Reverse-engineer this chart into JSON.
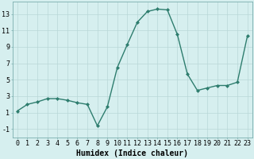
{
  "x": [
    0,
    1,
    2,
    3,
    4,
    5,
    6,
    7,
    8,
    9,
    10,
    11,
    12,
    13,
    14,
    15,
    16,
    17,
    18,
    19,
    20,
    21,
    22,
    23
  ],
  "y": [
    1.2,
    2.0,
    2.3,
    2.7,
    2.7,
    2.5,
    2.2,
    2.0,
    -0.6,
    1.7,
    6.5,
    9.3,
    12.0,
    13.3,
    13.6,
    13.5,
    10.5,
    5.7,
    3.7,
    4.0,
    4.3,
    4.3,
    4.7,
    10.3
  ],
  "line_color": "#2e7d6e",
  "marker": "D",
  "marker_size": 2,
  "bg_color": "#d6efef",
  "grid_color": "#b8d8d8",
  "xlabel": "Humidex (Indice chaleur)",
  "xlim": [
    -0.5,
    23.5
  ],
  "ylim": [
    -2.0,
    14.5
  ],
  "yticks": [
    -1,
    1,
    3,
    5,
    7,
    9,
    11,
    13
  ],
  "xticks": [
    0,
    1,
    2,
    3,
    4,
    5,
    6,
    7,
    8,
    9,
    10,
    11,
    12,
    13,
    14,
    15,
    16,
    17,
    18,
    19,
    20,
    21,
    22,
    23
  ],
  "xlabel_fontsize": 7,
  "tick_fontsize": 6,
  "line_width": 1.0,
  "fig_width": 3.2,
  "fig_height": 2.0,
  "dpi": 100
}
